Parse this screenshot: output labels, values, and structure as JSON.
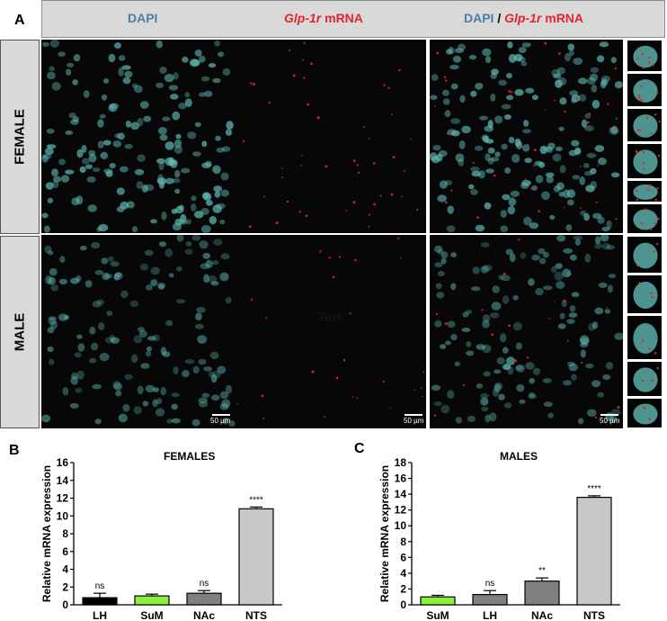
{
  "panel_a": {
    "letter": "A",
    "headers": {
      "col1": "DAPI",
      "col2_gene": "Glp-1r",
      "col2_suffix": " mRNA",
      "col3_dapi": "DAPI",
      "col3_sep": " / ",
      "col3_gene": "Glp-1r",
      "col3_suffix": " mRNA"
    },
    "rows": {
      "female": "FEMALE",
      "male": "MALE"
    },
    "scale_bar": "50 µm",
    "overlay_text": "Text"
  },
  "colors": {
    "nuclei": "#5fb8b4",
    "mrna": "#e0262b",
    "dapi_header": "#4a7ea8",
    "bar_black": "#000000",
    "bar_green": "#8cf03c",
    "bar_darkgray": "#7f7f7f",
    "bar_lightgray": "#c8c8c8"
  },
  "chart_data": [
    {
      "letter": "B",
      "type": "bar",
      "title": "FEMALES",
      "ylabel": "Relative mRNA expression",
      "ylim": [
        0,
        16
      ],
      "yticks": [
        0,
        2,
        4,
        6,
        8,
        10,
        12,
        14,
        16
      ],
      "categories": [
        "LH",
        "SuM",
        "NAc",
        "NTS"
      ],
      "values": [
        0.8,
        1.0,
        1.3,
        10.8
      ],
      "errors": [
        0.5,
        0.2,
        0.3,
        0.2
      ],
      "significance": [
        "ns",
        "",
        "ns",
        "****"
      ],
      "bar_colors": [
        "#000000",
        "#8cf03c",
        "#7f7f7f",
        "#c8c8c8"
      ]
    },
    {
      "letter": "C",
      "type": "bar",
      "title": "MALES",
      "ylabel": "Relative mRNA expression",
      "ylim": [
        0,
        18
      ],
      "yticks": [
        0,
        2,
        4,
        6,
        8,
        10,
        12,
        14,
        16,
        18
      ],
      "categories": [
        "SuM",
        "LH",
        "NAc",
        "NTS"
      ],
      "values": [
        1.0,
        1.3,
        3.0,
        13.6
      ],
      "errors": [
        0.2,
        0.5,
        0.4,
        0.2
      ],
      "significance": [
        "",
        "ns",
        "**",
        "****"
      ],
      "bar_colors": [
        "#8cf03c",
        "#7f7f7f",
        "#7f7f7f",
        "#c8c8c8"
      ]
    }
  ]
}
